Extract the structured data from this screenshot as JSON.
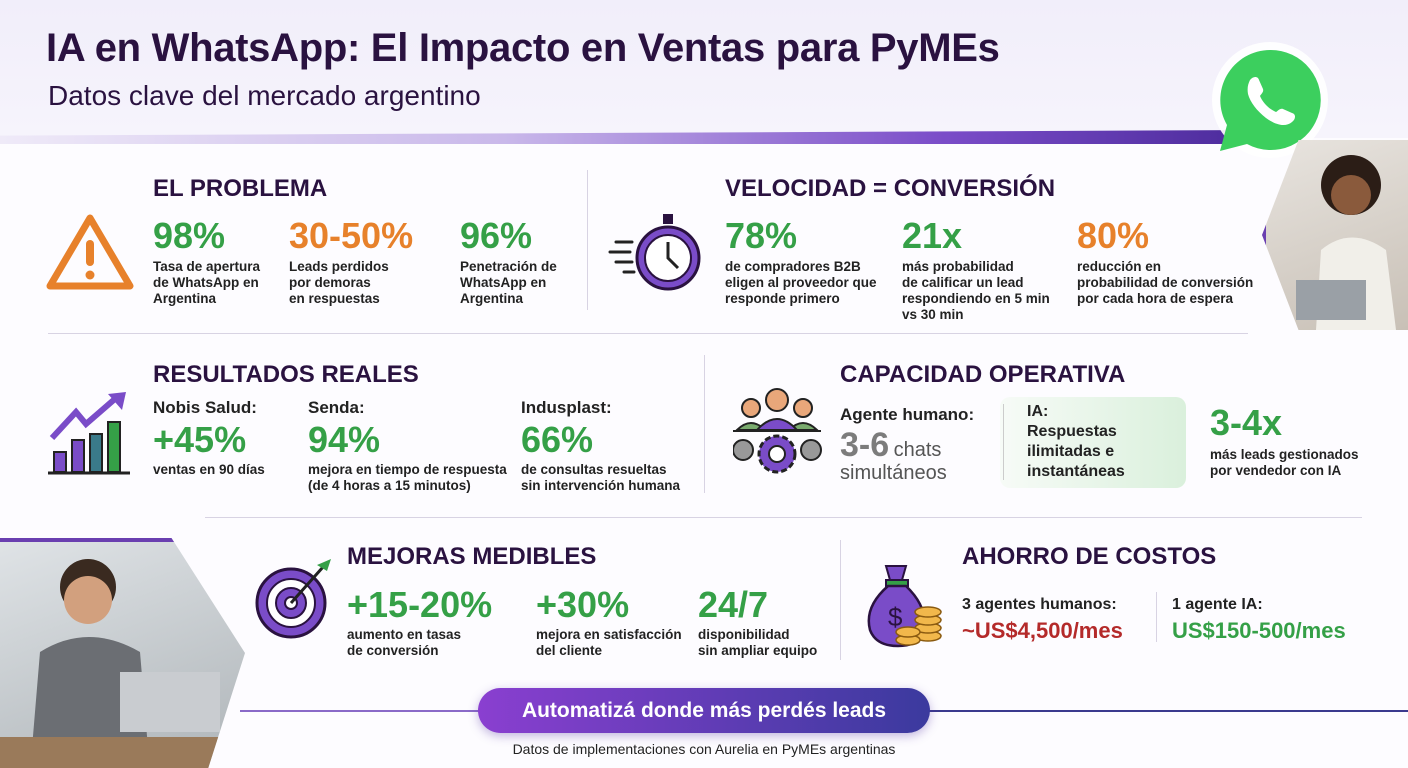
{
  "header": {
    "title": "IA en WhatsApp: El Impacto en Ventas para PyMEs",
    "subtitle": "Datos clave del mercado argentino"
  },
  "colors": {
    "green": "#35a047",
    "orange": "#e7812b",
    "purple": "#6a3fb0",
    "red": "#b42a2a",
    "dark": "#2a1240"
  },
  "problema": {
    "heading": "EL PROBLEMA",
    "icon": "warning-icon",
    "stats": [
      {
        "value": "98%",
        "desc": [
          "Tasa de apertura",
          "de WhatsApp en",
          "Argentina"
        ]
      },
      {
        "value": "30-50%",
        "desc": [
          "Leads perdidos",
          "por demoras",
          "en respuestas"
        ]
      },
      {
        "value": "96%",
        "desc": [
          "Penetración de",
          "WhatsApp en",
          "Argentina"
        ]
      }
    ]
  },
  "velocidad": {
    "heading": "VELOCIDAD = CONVERSIÓN",
    "icon": "stopwatch-icon",
    "stats": [
      {
        "value": "78%",
        "desc": [
          "de compradores B2B",
          "eligen al proveedor que",
          "responde primero"
        ]
      },
      {
        "value": "21x",
        "desc": [
          "más probabilidad",
          "de calificar un lead",
          "respondiendo en 5 min",
          "vs 30 min"
        ]
      },
      {
        "value": "80%",
        "desc": [
          "reducción en",
          "probabilidad de conversión",
          "por cada hora de espera"
        ]
      }
    ]
  },
  "resultados": {
    "heading": "RESULTADOS REALES",
    "icon": "growth-chart-icon",
    "stats": [
      {
        "label": "Nobis Salud:",
        "value": "+45%",
        "desc": [
          "ventas en 90 días"
        ]
      },
      {
        "label": "Senda:",
        "value": "94%",
        "desc": [
          "mejora en tiempo de respuesta",
          "(de 4 horas a 15 minutos)"
        ]
      },
      {
        "label": "Indusplast:",
        "value": "66%",
        "desc": [
          "de consultas resueltas",
          "sin intervención humana"
        ]
      }
    ]
  },
  "capacidad": {
    "heading": "CAPACIDAD OPERATIVA",
    "icon": "team-gear-icon",
    "human_label": "Agente humano:",
    "human_value": "3-6",
    "human_unit": "chats",
    "human_unit2": "simultáneos",
    "ia_label": "IA:",
    "ia_desc": [
      "Respuestas",
      "ilimitadas e",
      "instantáneas"
    ],
    "multiplier": "3-4x",
    "multiplier_desc": [
      "más leads gestionados",
      "por vendedor con IA"
    ]
  },
  "mejoras": {
    "heading": "MEJORAS MEDIBLES",
    "icon": "target-icon",
    "stats": [
      {
        "value": "+15-20%",
        "desc": [
          "aumento en tasas",
          "de conversión"
        ]
      },
      {
        "value": "+30%",
        "desc": [
          "mejora en satisfacción",
          "del cliente"
        ]
      },
      {
        "value": "24/7",
        "desc": [
          "disponibilidad",
          "sin ampliar equipo"
        ]
      }
    ]
  },
  "ahorro": {
    "heading": "AHORRO DE COSTOS",
    "icon": "money-bag-icon",
    "human_label": "3 agentes humanos:",
    "human_cost": "~US$4,500/mes",
    "ia_label": "1 agente IA:",
    "ia_cost": "US$150-500/mes"
  },
  "cta": {
    "label": "Automatizá donde más perdés leads"
  },
  "footer": {
    "text": "Datos de implementaciones con Aurelia en PyMEs argentinas"
  }
}
